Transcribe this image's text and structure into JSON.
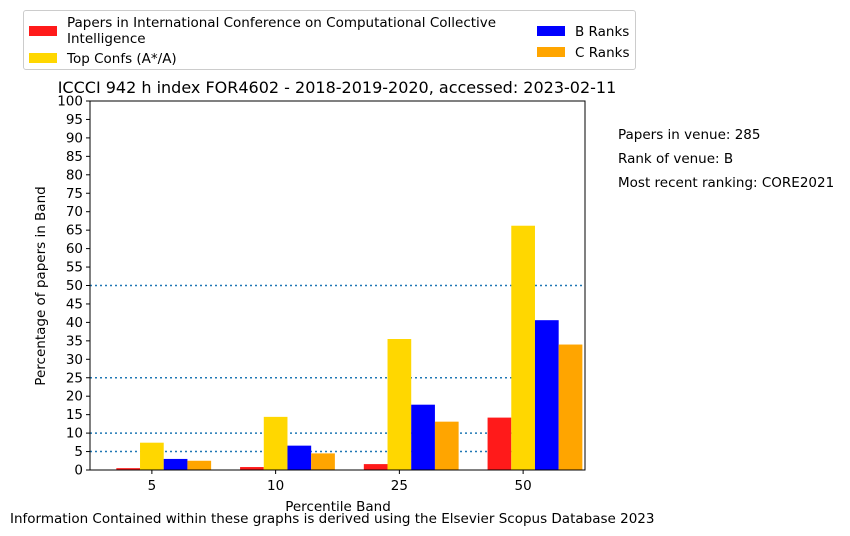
{
  "chart_data": {
    "type": "bar",
    "title": "ICCCI 942 h index FOR4602 - 2018-2019-2020, accessed: 2023-02-11",
    "xlabel": "Percentile Band",
    "ylabel": "Percentage of papers in Band",
    "categories": [
      "5",
      "10",
      "25",
      "50"
    ],
    "ylim": [
      0,
      100
    ],
    "yticks": [
      0,
      5,
      10,
      15,
      20,
      25,
      30,
      35,
      40,
      45,
      50,
      55,
      60,
      65,
      70,
      75,
      80,
      85,
      90,
      95,
      100
    ],
    "reference_lines": [
      5,
      10,
      25,
      50
    ],
    "legend_position": "top",
    "series": [
      {
        "name": "Papers in International Conference on Computational Collective Intelligence",
        "color": "#ff1a1a",
        "values": [
          0.5,
          0.8,
          1.6,
          14.2
        ]
      },
      {
        "name": "Top Confs (A*/A)",
        "color": "#ffd700",
        "values": [
          7.4,
          14.4,
          35.5,
          66.2
        ]
      },
      {
        "name": "B Ranks",
        "color": "#0000ff",
        "values": [
          3.0,
          6.6,
          17.7,
          40.6
        ]
      },
      {
        "name": "C Ranks",
        "color": "#ffa500",
        "values": [
          2.5,
          4.5,
          13.1,
          34.0
        ]
      }
    ]
  },
  "side_info": {
    "papers": "Papers in venue: 285",
    "rank": "Rank of venue: B",
    "recent": "Most recent ranking: CORE2021"
  },
  "footer": "Information Contained within these graphs is derived using the Elsevier Scopus Database 2023"
}
